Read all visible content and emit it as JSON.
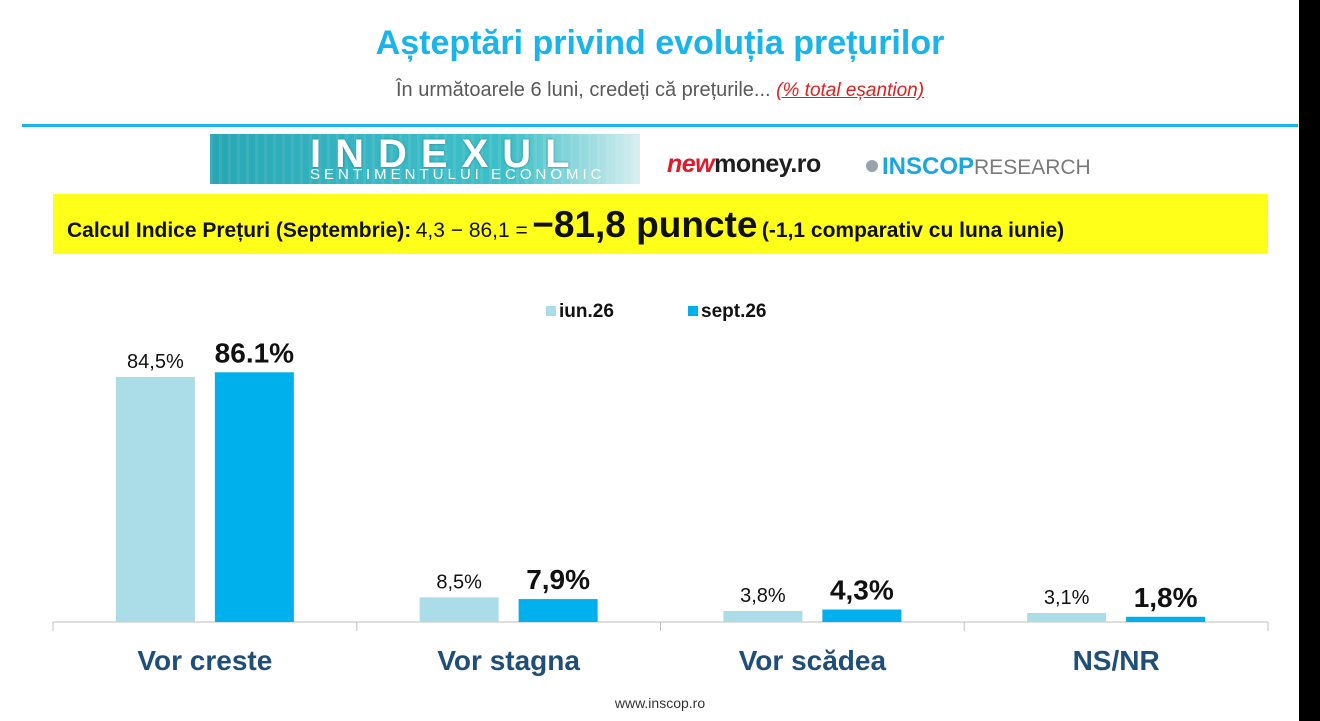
{
  "header": {
    "title": "Așteptări privind evoluția prețurilor",
    "subtitle": "În următoarele 6 luni, credeți că prețurile...",
    "subtitle_note": "(% total eșantion)"
  },
  "logos": {
    "indexul_main": "INDEXUL",
    "indexul_sub": "SENTIMENTULUI ECONOMIC",
    "newmoney_new": "new",
    "newmoney_rest": "money.ro",
    "inscop_bold": "INSCOP",
    "inscop_light": "RESEARCH"
  },
  "banner": {
    "label": "Calcul Indice Prețuri (Septembrie):",
    "calc": "4,3 − 86,1 =",
    "result": "−81,8 puncte",
    "comparison": "(-1,1 comparativ cu luna iunie)",
    "background": "#ffff1a"
  },
  "colors": {
    "accent": "#19b4ea",
    "series_jun": "#aadde8",
    "series_sep": "#00b0ec"
  },
  "chart_data": {
    "type": "bar",
    "categories": [
      "Vor creste",
      "Vor stagna",
      "Vor scădea",
      "NS/NR"
    ],
    "series": [
      {
        "name": "iun.26",
        "values": [
          84.5,
          8.5,
          3.8,
          3.1
        ],
        "labels": [
          "84,5%",
          "8,5%",
          "3,8%",
          "3,1%"
        ],
        "color": "#aadde8"
      },
      {
        "name": "sept.26",
        "values": [
          86.1,
          7.9,
          4.3,
          1.8
        ],
        "labels": [
          "86.1%",
          "7,9%",
          "4,3%",
          "1,8%"
        ],
        "color": "#00b0ec"
      }
    ],
    "ylim": [
      0,
      100
    ],
    "grid": false,
    "legend_position": "top-center"
  },
  "footer": {
    "url": "www.inscop.ro"
  }
}
